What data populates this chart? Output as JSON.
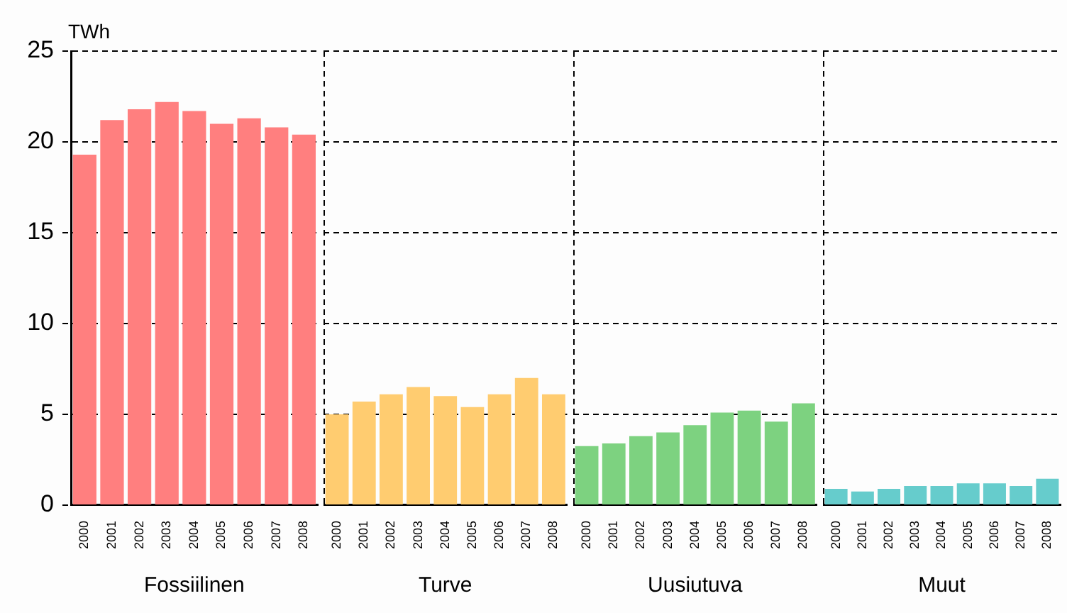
{
  "chart_data": [
    {
      "type": "bar",
      "ylabel": "TWh",
      "xlabel": "Fossiilinen",
      "categories": [
        "2000",
        "2001",
        "2002",
        "2003",
        "2004",
        "2005",
        "2006",
        "2007",
        "2008"
      ],
      "values": [
        19.3,
        21.2,
        21.8,
        22.2,
        21.7,
        21.0,
        21.3,
        20.8,
        20.4
      ],
      "color": "#ff7f7f",
      "ylim": [
        0,
        25
      ],
      "yticks": [
        0,
        5,
        10,
        15,
        20,
        25
      ],
      "grid": "y"
    },
    {
      "type": "bar",
      "xlabel": "Turve",
      "categories": [
        "2000",
        "2001",
        "2002",
        "2003",
        "2004",
        "2005",
        "2006",
        "2007",
        "2008"
      ],
      "values": [
        5.0,
        5.7,
        6.1,
        6.5,
        6.0,
        5.4,
        6.1,
        7.0,
        6.1
      ],
      "color": "#ffcc70",
      "ylim": [
        0,
        25
      ],
      "yticks": [
        0,
        5,
        10,
        15,
        20,
        25
      ],
      "grid": "y",
      "tick_labels": "x"
    },
    {
      "type": "bar",
      "xlabel": "Uusiutuva",
      "categories": [
        "2000",
        "2001",
        "2002",
        "2003",
        "2004",
        "2005",
        "2006",
        "2007",
        "2008"
      ],
      "values": [
        3.25,
        3.4,
        3.8,
        4.0,
        4.4,
        5.1,
        5.2,
        4.6,
        5.6
      ],
      "color": "#7dd280",
      "ylim": [
        0,
        25
      ],
      "yticks": [
        0,
        5,
        10,
        15,
        20,
        25
      ],
      "grid": "y",
      "tick_labels": "x"
    },
    {
      "type": "bar",
      "xlabel": "Muut",
      "categories": [
        "2000",
        "2001",
        "2002",
        "2003",
        "2004",
        "2005",
        "2006",
        "2007",
        "2008"
      ],
      "values": [
        0.9,
        0.75,
        0.9,
        1.05,
        1.05,
        1.2,
        1.2,
        1.05,
        1.45
      ],
      "color": "#66cccc",
      "ylim": [
        0,
        25
      ],
      "yticks": [
        0,
        5,
        10,
        15,
        20,
        25
      ],
      "grid": "y",
      "tick_labels": "x"
    }
  ]
}
